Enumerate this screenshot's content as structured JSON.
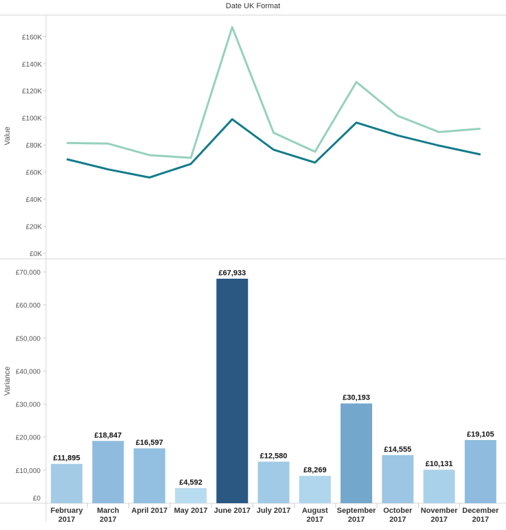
{
  "chart_data": [
    {
      "type": "line",
      "title": "Date UK Format",
      "ylabel": "Value",
      "ylim": [
        0,
        175000
      ],
      "yticks": [
        "£0K",
        "£20K",
        "£40K",
        "£60K",
        "£80K",
        "£100K",
        "£120K",
        "£140K",
        "£160K"
      ],
      "ytick_values": [
        0,
        20000,
        40000,
        60000,
        80000,
        100000,
        120000,
        140000,
        160000
      ],
      "categories": [
        "February 2017",
        "March 2017",
        "April 2017",
        "May 2017",
        "June 2017",
        "July 2017",
        "August 2017",
        "September 2017",
        "October 2017",
        "November 2017",
        "December 2017"
      ],
      "grid": false,
      "series": [
        {
          "color": "#96d1bd",
          "values": [
            81500,
            81000,
            72500,
            70500,
            167000,
            89000,
            75000,
            126500,
            101500,
            89500,
            92000
          ]
        },
        {
          "color": "#127b8a",
          "values": [
            69500,
            62000,
            56000,
            66000,
            99000,
            76500,
            67000,
            96500,
            87000,
            79500,
            73000
          ]
        }
      ]
    },
    {
      "type": "bar",
      "ylabel": "Variance",
      "ylim": [
        0,
        73000
      ],
      "yticks": [
        "£0",
        "£10,000",
        "£20,000",
        "£30,000",
        "£40,000",
        "£50,000",
        "£60,000",
        "£70,000"
      ],
      "ytick_values": [
        0,
        10000,
        20000,
        30000,
        40000,
        50000,
        60000,
        70000
      ],
      "categories": [
        [
          "February",
          "2017"
        ],
        [
          "March",
          "2017"
        ],
        [
          "April 2017"
        ],
        [
          "May 2017"
        ],
        [
          "June 2017"
        ],
        [
          "July 2017"
        ],
        [
          "August",
          "2017"
        ],
        [
          "September",
          "2017"
        ],
        [
          "October",
          "2017"
        ],
        [
          "November",
          "2017"
        ],
        [
          "December",
          "2017"
        ]
      ],
      "values": [
        11895,
        18847,
        16597,
        4592,
        67933,
        12580,
        8269,
        30193,
        14555,
        10131,
        19105
      ],
      "labels": [
        "£11,895",
        "£18,847",
        "£16,597",
        "£4,592",
        "£67,933",
        "£12,580",
        "£8,269",
        "£30,193",
        "£14,555",
        "£10,131",
        "£19,105"
      ],
      "colors": [
        "#a3cbe6",
        "#8fbcde",
        "#93c0e0",
        "#b8dcef",
        "#2b5783",
        "#a0cae5",
        "#afd6ed",
        "#74a7cc",
        "#9cc6e3",
        "#aad1ea",
        "#8fbcde"
      ],
      "grid": false
    }
  ]
}
